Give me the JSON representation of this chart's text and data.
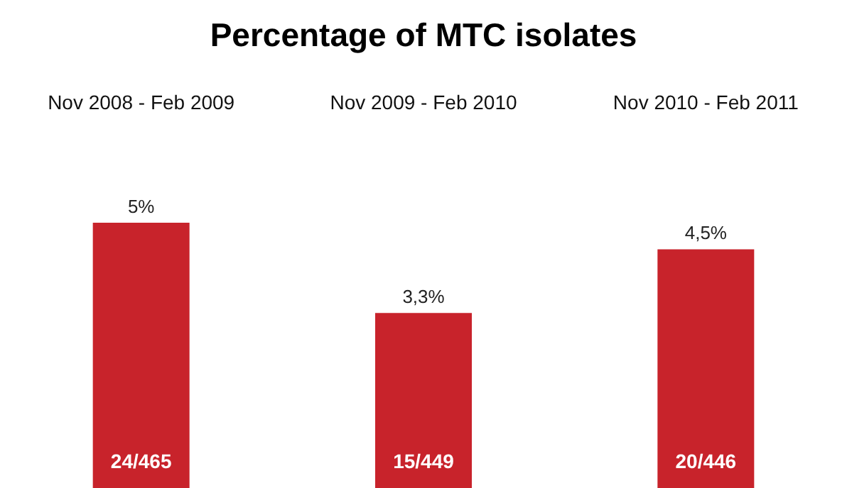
{
  "chart_data": {
    "type": "bar",
    "title": "Percentage of MTC isolates",
    "categories": [
      "Nov 2008 - Feb 2009",
      "Nov 2009 - Feb 2010",
      "Nov 2010 - Feb 2011"
    ],
    "values": [
      5,
      3.3,
      4.5
    ],
    "value_labels": [
      "5%",
      "3,3%",
      "4,5%"
    ],
    "color": "#c8232b",
    "ylim": [
      0,
      5
    ],
    "tick_labels": "x",
    "grid": false,
    "annotations": [
      "24/465",
      "15/449",
      "20/446"
    ]
  }
}
